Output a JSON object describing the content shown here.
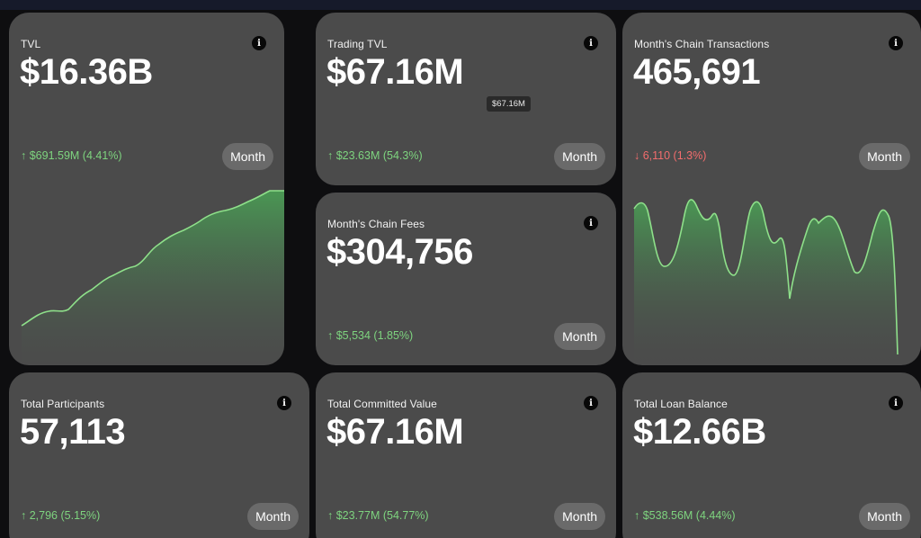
{
  "cards": {
    "tvl": {
      "title": "TVL",
      "value": "$16.36B",
      "change": "↑ $691.59M (4.41%)",
      "period": "Month"
    },
    "trading_tvl": {
      "title": "Trading TVL",
      "value": "$67.16M",
      "change": "↑ $23.63M (54.3%)",
      "period": "Month",
      "tooltip": "$67.16M"
    },
    "chain_tx": {
      "title": "Month's Chain Transactions",
      "value": "465,691",
      "change": "↓ 6,110 (1.3%)",
      "period": "Month"
    },
    "chain_fees": {
      "title": "Month's Chain Fees",
      "value": "$304,756",
      "change": "↑ $5,534 (1.85%)",
      "period": "Month"
    },
    "participants": {
      "title": "Total Participants",
      "value": "57,113",
      "change": "↑ 2,796 (5.15%)",
      "period": "Month"
    },
    "committed": {
      "title": "Total Committed Value",
      "value": "$67.16M",
      "change": "↑ $23.77M (54.77%)",
      "period": "Month"
    },
    "loan": {
      "title": "Total Loan Balance",
      "value": "$12.66B",
      "change": "↑ $538.56M (4.44%)",
      "period": "Month"
    }
  },
  "info_glyph": "i",
  "colors": {
    "card_bg": "#4b4b4b",
    "up": "#7ed47f",
    "down": "#f26d6d",
    "chart_line": "#8ee08a",
    "chart_fill": "#3f8f4a"
  }
}
